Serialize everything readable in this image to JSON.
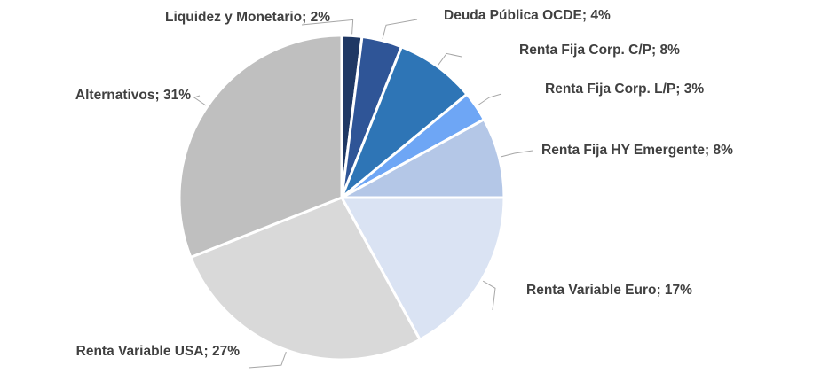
{
  "chart_data": {
    "type": "pie",
    "values": [
      2,
      4,
      8,
      3,
      8,
      17,
      27,
      31
    ],
    "value_labels": [
      "Liquidez y Monetario; 2%",
      "Deuda Pública OCDE; 4%",
      "Renta Fija Corp. C/P; 8%",
      "Renta Fija Corp. L/P; 3%",
      "Renta Fija HY Emergente; 8%",
      "Renta Variable Euro; 17%",
      "Renta Variable USA; 27%",
      "Alternativos; 31%"
    ],
    "colors": [
      "#1f3864",
      "#2f5597",
      "#2e75b6",
      "#6ea6f5",
      "#b4c7e7",
      "#dae3f3",
      "#d9d9d9",
      "#bfbfbf"
    ]
  }
}
